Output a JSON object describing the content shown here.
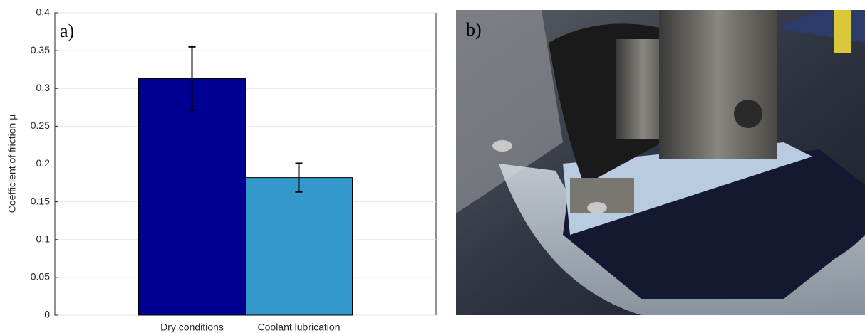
{
  "chart_data": {
    "type": "bar",
    "panel_label": "a)",
    "ylabel": "Coefficient of friction μ",
    "categories": [
      "Dry conditions",
      "Coolant lubrication"
    ],
    "values": [
      0.313,
      0.182
    ],
    "errors": [
      0.042,
      0.019
    ],
    "colors": [
      "#000093",
      "#3399cc"
    ],
    "ylim": [
      0,
      0.4
    ],
    "yticks": [
      0,
      0.05,
      0.1,
      0.15,
      0.2,
      0.25,
      0.3,
      0.35,
      0.4
    ],
    "grid": true
  },
  "photo": {
    "panel_label": "b)"
  }
}
